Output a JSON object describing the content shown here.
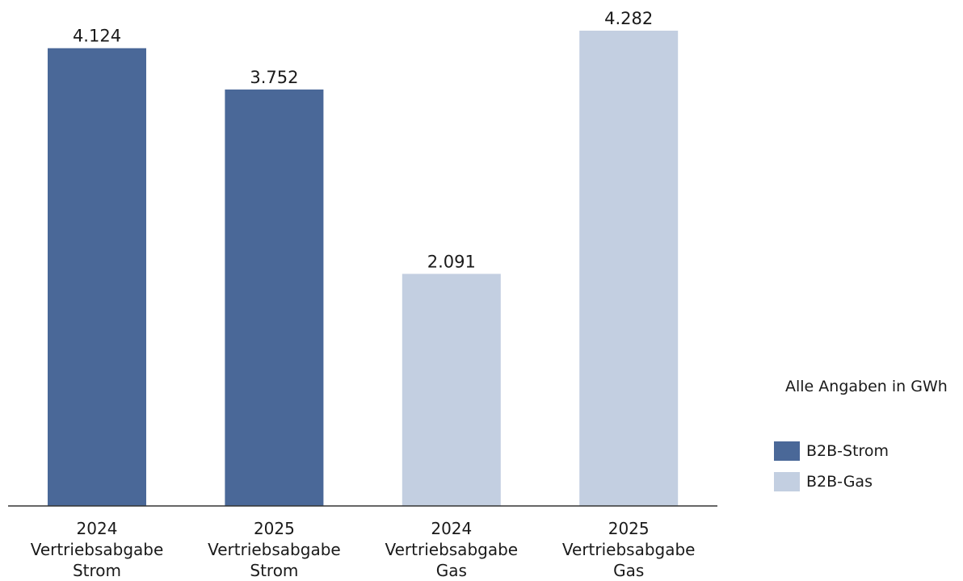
{
  "chart_data": {
    "type": "bar",
    "categories": [
      [
        "2024",
        "Vertriebsabgabe",
        "Strom"
      ],
      [
        "2025",
        "Vertriebsabgabe",
        "Strom"
      ],
      [
        "2024",
        "Vertriebsabgabe",
        "Gas"
      ],
      [
        "2025",
        "Vertriebsabgabe",
        "Gas"
      ]
    ],
    "values": [
      4124,
      3752,
      2091,
      4282
    ],
    "value_labels": [
      "4.124",
      "3.752",
      "2.091",
      "4.282"
    ],
    "bar_series": [
      "B2B-Strom",
      "B2B-Strom",
      "B2B-Gas",
      "B2B-Gas"
    ],
    "series": [
      {
        "name": "B2B-Strom",
        "color": "#4a6898"
      },
      {
        "name": "B2B-Gas",
        "color": "#c3cfe1"
      }
    ],
    "unit_note": "Alle Angaben in GWh",
    "ylim": [
      0,
      4282
    ],
    "grid": false,
    "legend_position": "right"
  }
}
